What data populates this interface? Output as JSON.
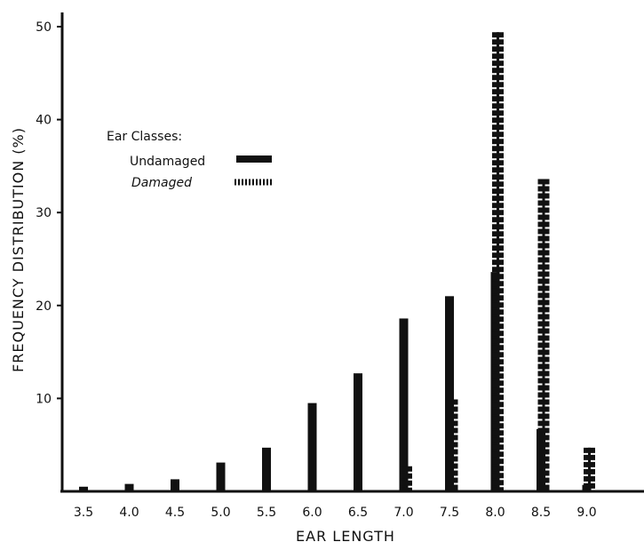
{
  "chart_data": {
    "type": "bar",
    "title": "",
    "xlabel": "EAR LENGTH",
    "ylabel": "FREQUENCY DISTRIBUTION (%)",
    "ylim": [
      0,
      50
    ],
    "yticks": [
      10,
      20,
      30,
      40,
      50
    ],
    "grid": false,
    "legend": {
      "title": "Ear Classes:",
      "position": "upper-left"
    },
    "categories": [
      "3.5",
      "4.0",
      "4.5",
      "5.0",
      "5.5",
      "6.0",
      "6.5",
      "7.0",
      "7.5",
      "8.0",
      "8.5",
      "9.0"
    ],
    "series": [
      {
        "name": "Undamaged",
        "style": "solid",
        "color": "#111111",
        "values": [
          0.5,
          0.8,
          1.3,
          3.1,
          4.7,
          9.5,
          12.7,
          18.6,
          21.0,
          23.6,
          6.7,
          0.7
        ]
      },
      {
        "name": "Damaged",
        "style": "dashed",
        "color": "#111111",
        "values": [
          0,
          0,
          0,
          0,
          0,
          0,
          0,
          2.7,
          9.9,
          49.4,
          33.6,
          4.7
        ]
      }
    ]
  }
}
